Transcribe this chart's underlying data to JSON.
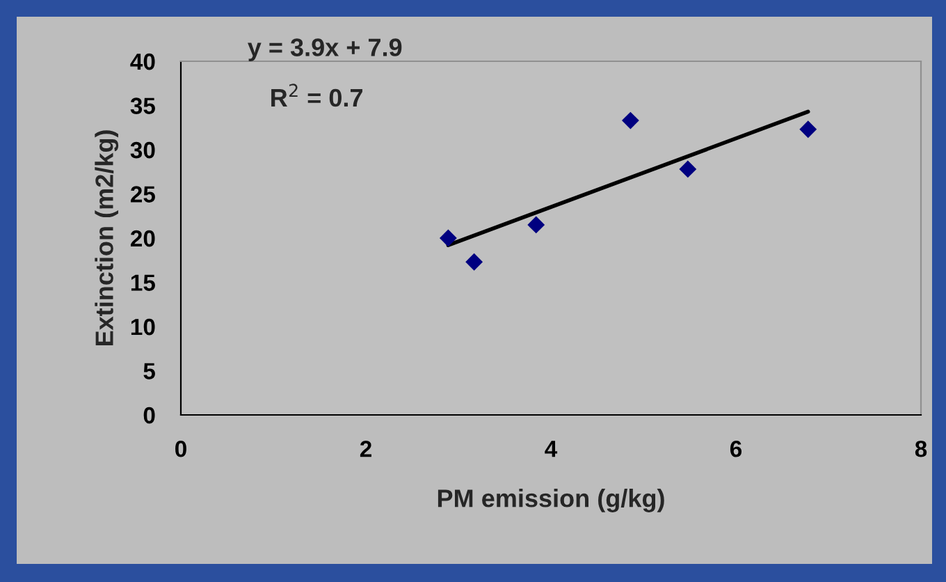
{
  "chart_data": {
    "type": "scatter",
    "xlabel": "PM emission (g/kg)",
    "ylabel": "Extinction (m2/kg)",
    "annotations": [
      "y = 3.9x + 7.9",
      "R$^{2}$ = 0.7"
    ],
    "series": [
      {
        "color": "#000080",
        "marker": "diamond",
        "x": [
          2.89,
          3.17,
          3.84,
          4.86,
          5.48,
          6.78
        ],
        "values": [
          20.0,
          17.3,
          21.5,
          33.3,
          27.8,
          32.3
        ]
      },
      {
        "type": "line",
        "color": "#000000",
        "line_style": "solid",
        "x": [
          2.89,
          6.78
        ],
        "values": [
          19.2,
          34.3
        ]
      }
    ],
    "xlim": [
      0,
      8
    ],
    "xticks": [
      0,
      2,
      4,
      6,
      8
    ],
    "ylim": [
      0,
      40
    ],
    "yticks": [
      0,
      5,
      10,
      15,
      20,
      25,
      30,
      35,
      40
    ],
    "grid": false,
    "legend": false
  }
}
